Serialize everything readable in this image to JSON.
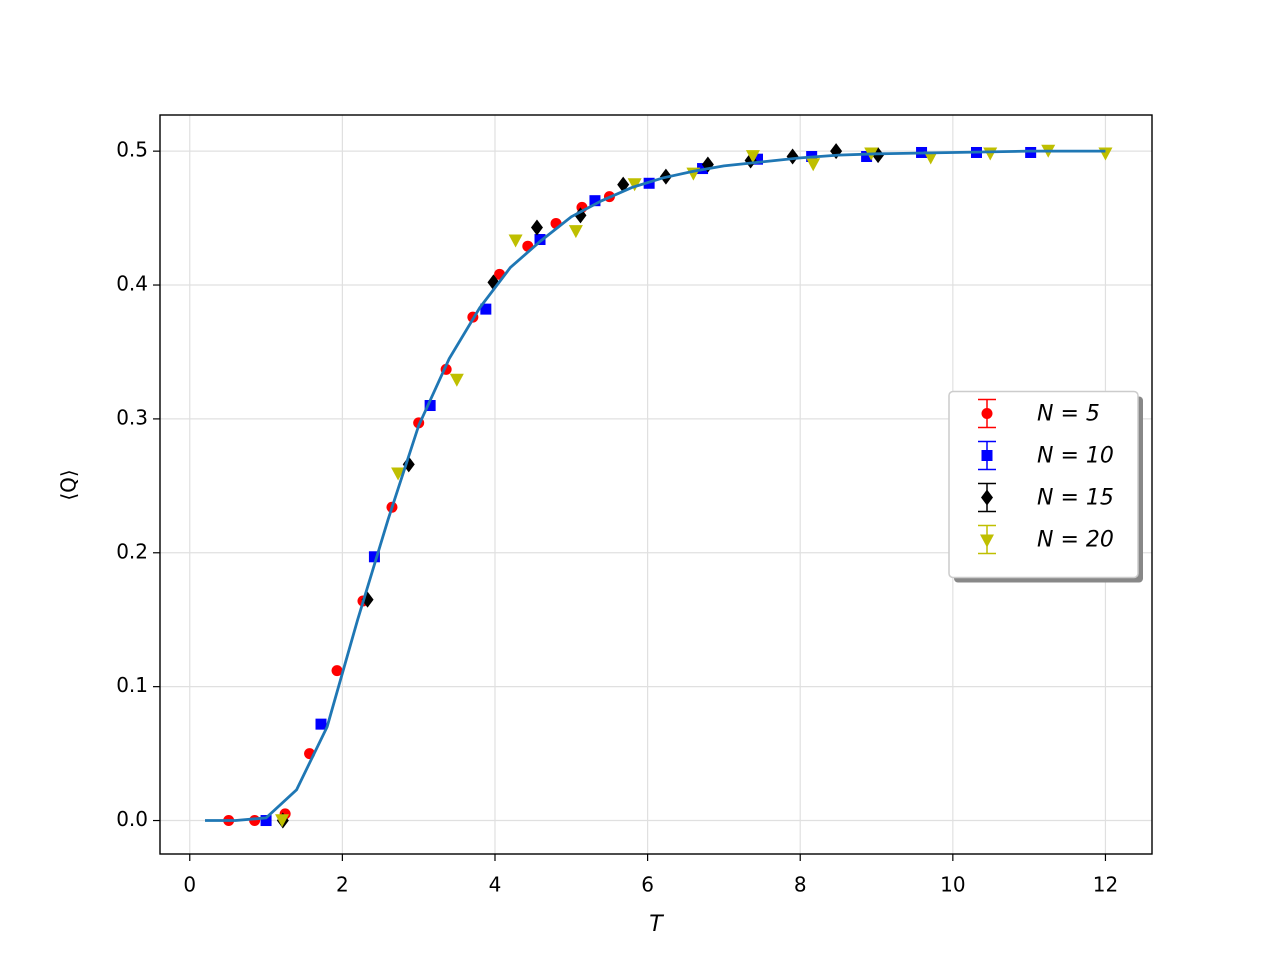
{
  "chart_data": {
    "type": "scatter",
    "xlabel": "T",
    "ylabel": "⟨Q⟩",
    "xlim": [
      -0.39,
      12.61
    ],
    "ylim": [
      -0.025,
      0.527
    ],
    "xticks": [
      0,
      2,
      4,
      6,
      8,
      10,
      12
    ],
    "yticks": [
      {
        "value": 0,
        "label": "0.0"
      },
      0.1,
      0.2,
      0.3,
      0.4,
      0.5
    ],
    "grid": true,
    "legend": "center right",
    "series": [
      {
        "name": "N = 5",
        "color": "#ff0000",
        "marker": "circle",
        "x": [
          0.51,
          0.85,
          1.25,
          1.57,
          1.93,
          2.27,
          2.65,
          3.0,
          3.36,
          3.71,
          4.06,
          4.43,
          4.8,
          5.14,
          5.5
        ],
        "values": [
          0,
          0,
          0.005,
          0.05,
          0.112,
          0.164,
          0.234,
          0.297,
          0.337,
          0.376,
          0.408,
          0.429,
          0.446,
          0.458,
          0.466
        ]
      },
      {
        "name": "N = 10",
        "color": "#0000ff",
        "marker": "square",
        "x": [
          1.0,
          1.72,
          2.42,
          3.15,
          3.88,
          4.59,
          5.31,
          6.02,
          6.72,
          7.44,
          8.15,
          8.87,
          9.59,
          10.31,
          11.02
        ],
        "values": [
          0,
          0.072,
          0.197,
          0.31,
          0.382,
          0.434,
          0.463,
          0.476,
          0.487,
          0.494,
          0.496,
          0.496,
          0.499,
          0.499,
          0.499
        ]
      },
      {
        "name": "N = 15",
        "color": "#000000",
        "marker": "diamond",
        "x": [
          1.22,
          2.33,
          2.87,
          3.98,
          4.55,
          5.12,
          5.68,
          6.24,
          6.79,
          7.35,
          7.9,
          8.47,
          9.02
        ],
        "values": [
          0,
          0.165,
          0.266,
          0.402,
          0.443,
          0.452,
          0.475,
          0.481,
          0.49,
          0.493,
          0.496,
          0.5,
          0.497
        ]
      },
      {
        "name": "N = 20",
        "color": "#bfbf00",
        "marker": "triangle-down",
        "x": [
          1.21,
          2.73,
          3.5,
          4.27,
          5.06,
          5.83,
          6.6,
          7.38,
          8.17,
          8.93,
          9.71,
          10.49,
          11.25,
          12.0
        ],
        "values": [
          0.001,
          0.26,
          0.33,
          0.434,
          0.441,
          0.476,
          0.484,
          0.497,
          0.491,
          0.499,
          0.496,
          0.499,
          0.501,
          0.499
        ]
      }
    ],
    "lines": [
      {
        "color": "#1f77b4",
        "x": [
          0.2,
          0.6,
          1.0,
          1.4,
          1.8,
          2.2,
          2.6,
          3.0,
          3.4,
          3.8,
          4.2,
          4.6,
          5.0,
          5.4,
          5.8,
          6.2,
          6.6,
          7.0,
          7.5,
          8.0,
          8.5,
          9.0,
          10.0,
          11.0,
          12.0
        ],
        "values": [
          0,
          0,
          0.002,
          0.023,
          0.07,
          0.15,
          0.225,
          0.295,
          0.345,
          0.383,
          0.413,
          0.433,
          0.451,
          0.463,
          0.473,
          0.48,
          0.485,
          0.489,
          0.492,
          0.495,
          0.497,
          0.498,
          0.499,
          0.5,
          0.5
        ]
      }
    ]
  }
}
